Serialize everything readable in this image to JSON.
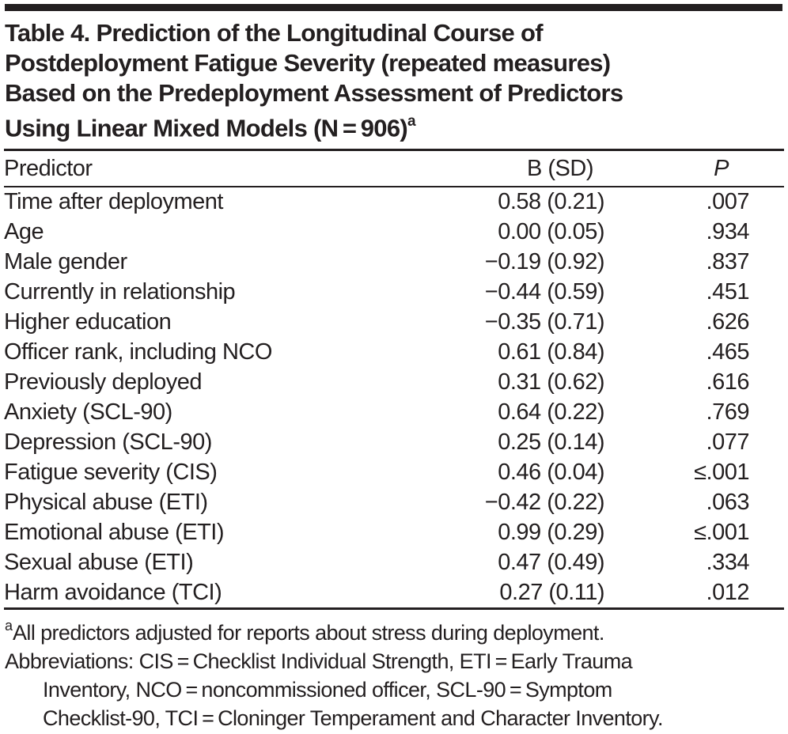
{
  "title": {
    "lines": [
      "Table 4. Prediction of the Longitudinal Course of",
      "Postdeployment Fatigue Severity (repeated measures)",
      "Based on the Predeployment Assessment of Predictors",
      "Using Linear Mixed Models (N = 906)"
    ],
    "superscript": "a"
  },
  "table": {
    "columns": {
      "predictor": "Predictor",
      "b_sd": "B (SD)",
      "p": "P"
    },
    "rows": [
      {
        "predictor": "Time after deployment",
        "b_sd": "0.58 (0.21)",
        "p": ".007"
      },
      {
        "predictor": "Age",
        "b_sd": "0.00 (0.05)",
        "p": ".934"
      },
      {
        "predictor": "Male gender",
        "b_sd": "−0.19 (0.92)",
        "p": ".837"
      },
      {
        "predictor": "Currently in relationship",
        "b_sd": "−0.44 (0.59)",
        "p": ".451"
      },
      {
        "predictor": "Higher education",
        "b_sd": "−0.35 (0.71)",
        "p": ".626"
      },
      {
        "predictor": "Officer rank, including NCO",
        "b_sd": "0.61 (0.84)",
        "p": ".465"
      },
      {
        "predictor": "Previously deployed",
        "b_sd": "0.31 (0.62)",
        "p": ".616"
      },
      {
        "predictor": "Anxiety (SCL-90)",
        "b_sd": "0.64 (0.22)",
        "p": ".769"
      },
      {
        "predictor": "Depression (SCL-90)",
        "b_sd": "0.25 (0.14)",
        "p": ".077"
      },
      {
        "predictor": "Fatigue severity (CIS)",
        "b_sd": "0.46 (0.04)",
        "p": "≤.001"
      },
      {
        "predictor": "Physical abuse (ETI)",
        "b_sd": "−0.42 (0.22)",
        "p": ".063"
      },
      {
        "predictor": "Emotional abuse (ETI)",
        "b_sd": "0.99 (0.29)",
        "p": "≤.001"
      },
      {
        "predictor": "Sexual abuse (ETI)",
        "b_sd": "0.47 (0.49)",
        "p": ".334"
      },
      {
        "predictor": "Harm avoidance (TCI)",
        "b_sd": "0.27 (0.11)",
        "p": ".012"
      }
    ]
  },
  "footnotes": {
    "a_marker": "a",
    "a_text": "All predictors adjusted for reports about stress during deployment.",
    "abbreviations_lines": [
      {
        "text": "Abbreviations: CIS = Checklist Individual Strength, ETI = Early Trauma",
        "indent": false
      },
      {
        "text": "Inventory, NCO = noncommissioned officer, SCL-90 = Symptom",
        "indent": true
      },
      {
        "text": "Checklist-90, TCI = Cloninger Temperament and Character Inventory.",
        "indent": true
      }
    ]
  },
  "colors": {
    "text": "#231f20",
    "rule": "#231f20",
    "background": "#ffffff"
  }
}
